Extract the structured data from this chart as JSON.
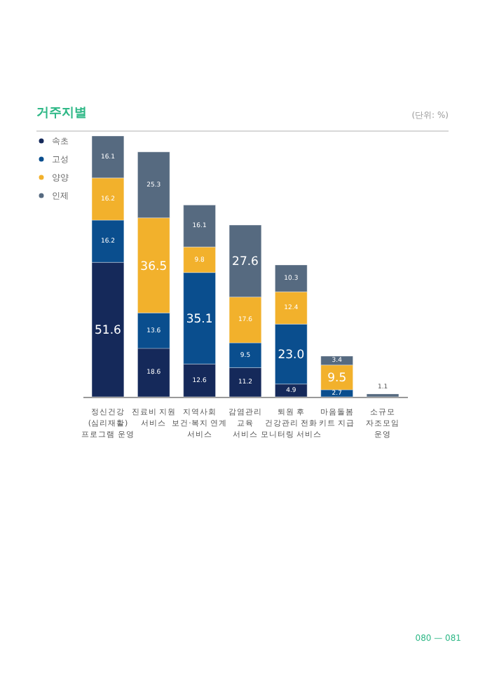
{
  "chart_data": {
    "type": "bar",
    "stacked": true,
    "title": "거주지별",
    "subtitle": "(단위: %)",
    "categories": [
      "정신건강\n(심리재활)\n프로그램 운영",
      "진료비 지원\n서비스",
      "지역사회\n보건·복지 연계\n서비스",
      "감염관리\n교육\n서비스",
      "퇴원 후\n건강관리 전화\n모니터링 서비스",
      "마음돌봄\n키트 지급",
      "소규모\n자조모임\n운영"
    ],
    "series": [
      {
        "name": "속초",
        "color": "#15295a",
        "values": [
          51.6,
          18.6,
          12.6,
          11.2,
          4.9,
          null,
          null
        ]
      },
      {
        "name": "고성",
        "color": "#0a4e8e",
        "values": [
          16.2,
          13.6,
          35.1,
          9.5,
          23.0,
          2.7,
          null
        ],
        "value_labels": [
          "16.2",
          "13.6",
          "35.1",
          "9.5",
          "23.0",
          "2.7",
          null
        ]
      },
      {
        "name": "양양",
        "color": "#f2b12c",
        "values": [
          16.2,
          36.5,
          9.8,
          17.6,
          12.4,
          9.5,
          null
        ]
      },
      {
        "name": "인제",
        "color": "#566a80",
        "values": [
          16.1,
          25.3,
          16.1,
          27.6,
          10.3,
          3.4,
          1.1
        ]
      }
    ],
    "data_labels": true,
    "legend": "top left",
    "annotations": [
      "080 — 081"
    ]
  }
}
